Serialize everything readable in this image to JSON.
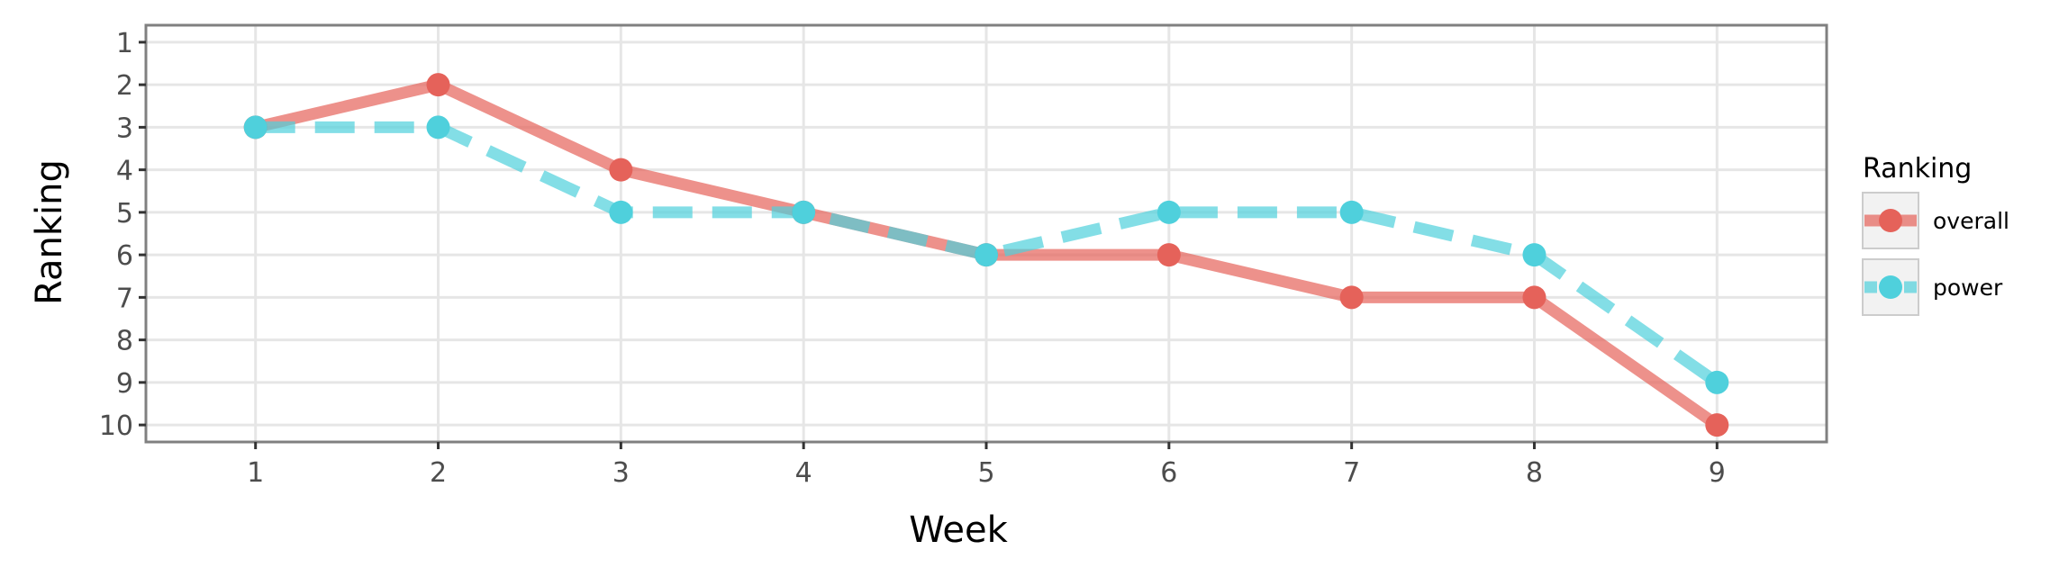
{
  "chart_data": {
    "type": "line",
    "xlabel": "Week",
    "ylabel": "Ranking",
    "x": [
      1,
      2,
      3,
      4,
      5,
      6,
      7,
      8,
      9
    ],
    "xlim": [
      0.4,
      9.6
    ],
    "ylim": [
      10.4,
      0.6
    ],
    "y_reversed": true,
    "x_ticks": [
      "1",
      "2",
      "3",
      "4",
      "5",
      "6",
      "7",
      "8",
      "9"
    ],
    "y_ticks": [
      "1",
      "2",
      "3",
      "4",
      "5",
      "6",
      "7",
      "8",
      "9",
      "10"
    ],
    "grid": true,
    "legend": {
      "title": "Ranking",
      "placement": "right"
    },
    "series": [
      {
        "name": "overall",
        "values": [
          3,
          2,
          4,
          5,
          6,
          6,
          7,
          7,
          10
        ],
        "color": "#e5625a",
        "line_style": "solid"
      },
      {
        "name": "power",
        "values": [
          3,
          3,
          5,
          5,
          6,
          5,
          5,
          6,
          9
        ],
        "color": "#4fd0dc",
        "line_style": "dashed"
      }
    ]
  }
}
